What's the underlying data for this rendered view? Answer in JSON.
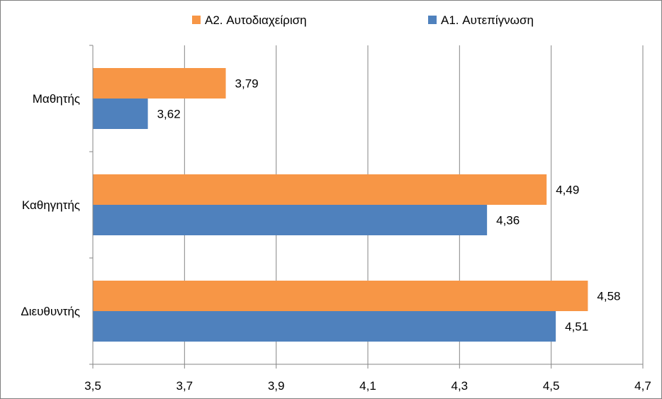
{
  "chart_data": {
    "type": "bar",
    "orientation": "horizontal",
    "categories": [
      "Μαθητής",
      "Καθηγητής",
      "Διευθυντής"
    ],
    "series": [
      {
        "name": "A1. Αυτεπίγνωση",
        "color": "#4f81bd",
        "values": [
          3.62,
          4.36,
          4.51
        ],
        "labels": [
          "3,62",
          "4,36",
          "4,51"
        ]
      },
      {
        "name": "A2. Αυτοδιαχείριση",
        "color": "#f79646",
        "values": [
          3.79,
          4.49,
          4.58
        ],
        "labels": [
          "3,79",
          "4,49",
          "4,58"
        ]
      }
    ],
    "xlim": [
      3.5,
      4.7
    ],
    "xticks": [
      3.5,
      3.7,
      3.9,
      4.1,
      4.3,
      4.5,
      4.7
    ],
    "xtick_labels": [
      "3,5",
      "3,7",
      "3,9",
      "4,1",
      "4,3",
      "4,5",
      "4,7"
    ],
    "grid": true,
    "legend_position": "top",
    "legend_order": [
      "A2. Αυτοδιαχείριση",
      "A1. Αυτεπίγνωση"
    ],
    "gridline_color": "#868686",
    "axis_color": "#868686"
  }
}
